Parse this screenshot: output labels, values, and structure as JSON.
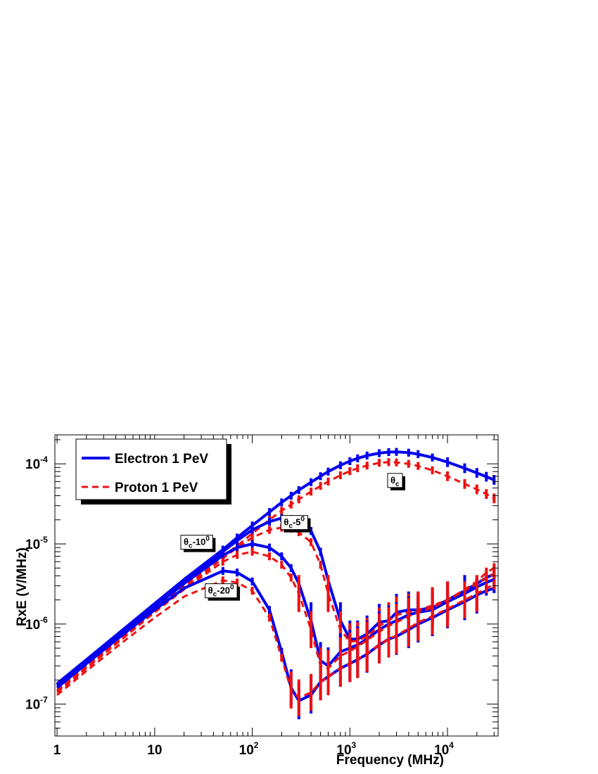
{
  "chart_data": {
    "type": "line",
    "xlabel": "Frequency (MHz)",
    "ylabel": "RxE (V/MHz)",
    "x_scale": "log",
    "y_scale": "log",
    "xlim": [
      0.95,
      33000
    ],
    "ylim": [
      4e-08,
      0.00023
    ],
    "x_ticks": [
      {
        "value": 1,
        "base": "1",
        "exp": ""
      },
      {
        "value": 10,
        "base": "10",
        "exp": ""
      },
      {
        "value": 100,
        "base": "10",
        "exp": "2"
      },
      {
        "value": 1000,
        "base": "10",
        "exp": "3"
      },
      {
        "value": 10000,
        "base": "10",
        "exp": "4"
      }
    ],
    "y_ticks": [
      {
        "value": 1e-07,
        "base": "10",
        "exp": "-7"
      },
      {
        "value": 1e-06,
        "base": "10",
        "exp": "-6"
      },
      {
        "value": 1e-05,
        "base": "10",
        "exp": "-5"
      },
      {
        "value": 0.0001,
        "base": "10",
        "exp": "-4"
      }
    ],
    "legend": {
      "position": "top-left",
      "entries": [
        {
          "label": "Electron 1 PeV",
          "color": "#0000ee",
          "style": "solid"
        },
        {
          "label": "Proton 1 PeV",
          "color": "#ee1111",
          "style": "dashed"
        }
      ]
    },
    "annotations": [
      {
        "sym": "θ",
        "sub": "c",
        "rest": "",
        "sup": "",
        "at": [
          2900,
          6.2e-05
        ]
      },
      {
        "sym": "θ",
        "sub": "c",
        "rest": "-5",
        "sup": "0",
        "at": [
          270,
          1.85e-05
        ]
      },
      {
        "sym": "θ",
        "sub": "c",
        "rest": "-10",
        "sup": "0",
        "at": [
          27,
          1.05e-05
        ]
      },
      {
        "sym": "θ",
        "sub": "c",
        "rest": "-20",
        "sup": "0",
        "at": [
          48,
          2.6e-06
        ]
      }
    ],
    "x": [
      1,
      2,
      5,
      10,
      20,
      50,
      70,
      100,
      150,
      200,
      250,
      300,
      400,
      500,
      600,
      800,
      1000,
      1200,
      1500,
      2000,
      2500,
      3000,
      4000,
      5000,
      7000,
      10000,
      15000,
      20000,
      25000,
      30000
    ],
    "series": [
      {
        "angle": "θc",
        "particle": "Electron 1 PeV",
        "color": "#0000ee",
        "style": "solid",
        "values": [
          1.8e-07,
          3.6e-07,
          9e-07,
          1.8e-06,
          3.6e-06,
          8.5e-06,
          1.2e-05,
          1.7e-05,
          2.5e-05,
          3.3e-05,
          4e-05,
          4.7e-05,
          5.9e-05,
          7e-05,
          8e-05,
          9.6e-05,
          0.000108,
          0.000117,
          0.000127,
          0.000136,
          0.00014,
          0.000141,
          0.000138,
          0.000132,
          0.00012,
          0.000105,
          8.8e-05,
          7.7e-05,
          6.9e-05,
          6.3e-05
        ]
      },
      {
        "angle": "θc",
        "particle": "Proton 1 PeV",
        "color": "#ee1111",
        "style": "dashed",
        "values": [
          1.5e-07,
          3e-07,
          7.5e-07,
          1.5e-06,
          3e-06,
          7e-06,
          9.5e-06,
          1.35e-05,
          2e-05,
          2.6e-05,
          3.1e-05,
          3.6e-05,
          4.5e-05,
          5.3e-05,
          6e-05,
          7.2e-05,
          8.1e-05,
          8.8e-05,
          9.5e-05,
          0.000103,
          0.000105,
          0.000104,
          0.0001,
          9.4e-05,
          8.3e-05,
          7e-05,
          5.6e-05,
          4.8e-05,
          4.2e-05,
          3.7e-05
        ]
      },
      {
        "angle": "θc-5",
        "particle": "Electron 1 PeV",
        "color": "#0000ee",
        "style": "solid",
        "values": [
          1.75e-07,
          3.5e-07,
          8.7e-07,
          1.75e-06,
          3.4e-06,
          8e-06,
          1.1e-05,
          1.5e-05,
          1.9e-05,
          2.1e-05,
          2.05e-05,
          1.9e-05,
          1.45e-05,
          8e-06,
          3.5e-06,
          1.1e-06,
          6.5e-07,
          6.5e-07,
          7.5e-07,
          1.05e-06,
          1.1e-06,
          1.4e-06,
          1.5e-06,
          1.5e-06,
          1.6e-06,
          2e-06,
          2.6e-06,
          3.2e-06,
          3.8e-06,
          4.2e-06
        ]
      },
      {
        "angle": "θc-5",
        "particle": "Proton 1 PeV",
        "color": "#ee1111",
        "style": "dashed",
        "values": [
          1.45e-07,
          2.9e-07,
          7.2e-07,
          1.45e-06,
          2.8e-06,
          6.6e-06,
          9e-06,
          1.2e-05,
          1.5e-05,
          1.6e-05,
          1.55e-05,
          1.4e-05,
          1.05e-05,
          5.5e-06,
          2.4e-06,
          8.5e-07,
          6e-07,
          6.2e-07,
          7e-07,
          9.5e-07,
          1.1e-06,
          1.3e-06,
          1.4e-06,
          1.5e-06,
          1.7e-06,
          2e-06,
          2.7e-06,
          3.4e-06,
          4.4e-06,
          5e-06
        ]
      },
      {
        "angle": "θc-10",
        "particle": "Electron 1 PeV",
        "color": "#0000ee",
        "style": "solid",
        "values": [
          1.7e-07,
          3.4e-07,
          8.4e-07,
          1.65e-06,
          3.2e-06,
          7.2e-06,
          9e-06,
          1e-05,
          9e-06,
          7e-06,
          5e-06,
          3.2e-06,
          1.1e-06,
          3.5e-07,
          3e-07,
          4.5e-07,
          5e-07,
          5.5e-07,
          6.5e-07,
          8.5e-07,
          1e-06,
          1.1e-06,
          1.3e-06,
          1.4e-06,
          1.5e-06,
          1.9e-06,
          2.4e-06,
          2.9e-06,
          3.3e-06,
          3.6e-06
        ]
      },
      {
        "angle": "θc-10",
        "particle": "Proton 1 PeV",
        "color": "#ee1111",
        "style": "dashed",
        "values": [
          1.4e-07,
          2.8e-07,
          7e-07,
          1.4e-06,
          2.7e-06,
          6e-06,
          7.3e-06,
          8e-06,
          7e-06,
          5.5e-06,
          3.8e-06,
          2.4e-06,
          8.5e-07,
          3e-07,
          2.8e-07,
          4e-07,
          4.6e-07,
          5.2e-07,
          6.3e-07,
          8e-07,
          9.5e-07,
          1.05e-06,
          1.25e-06,
          1.4e-06,
          1.6e-06,
          2e-06,
          2.6e-06,
          3.2e-06,
          3.8e-06,
          4.2e-06
        ]
      },
      {
        "angle": "θc-20",
        "particle": "Electron 1 PeV",
        "color": "#0000ee",
        "style": "solid",
        "values": [
          1.6e-07,
          3.2e-07,
          7.8e-07,
          1.5e-06,
          2.8e-06,
          4.6e-06,
          4.4e-06,
          3.4e-06,
          1.5e-06,
          4.5e-07,
          1.6e-07,
          1.1e-07,
          1.3e-07,
          1.9e-07,
          2.2e-07,
          2.8e-07,
          3.2e-07,
          3.6e-07,
          4.2e-07,
          5.5e-07,
          6.5e-07,
          7e-07,
          8.5e-07,
          1e-06,
          1.2e-06,
          1.5e-06,
          1.9e-06,
          2.3e-06,
          2.6e-06,
          2.8e-06
        ]
      },
      {
        "angle": "θc-20",
        "particle": "Proton 1 PeV",
        "color": "#ee1111",
        "style": "dashed",
        "values": [
          1.3e-07,
          2.6e-07,
          6.3e-07,
          1.2e-06,
          2.2e-06,
          3.5e-06,
          3.3e-06,
          2.6e-06,
          1.2e-06,
          3.8e-07,
          1.5e-07,
          1.2e-07,
          1.4e-07,
          1.9e-07,
          2.2e-07,
          2.8e-07,
          3.2e-07,
          3.6e-07,
          4.3e-07,
          5.5e-07,
          6.5e-07,
          7.2e-07,
          8.8e-07,
          1.05e-06,
          1.25e-06,
          1.55e-06,
          2e-06,
          2.4e-06,
          2.8e-06,
          3.1e-06
        ]
      }
    ]
  }
}
